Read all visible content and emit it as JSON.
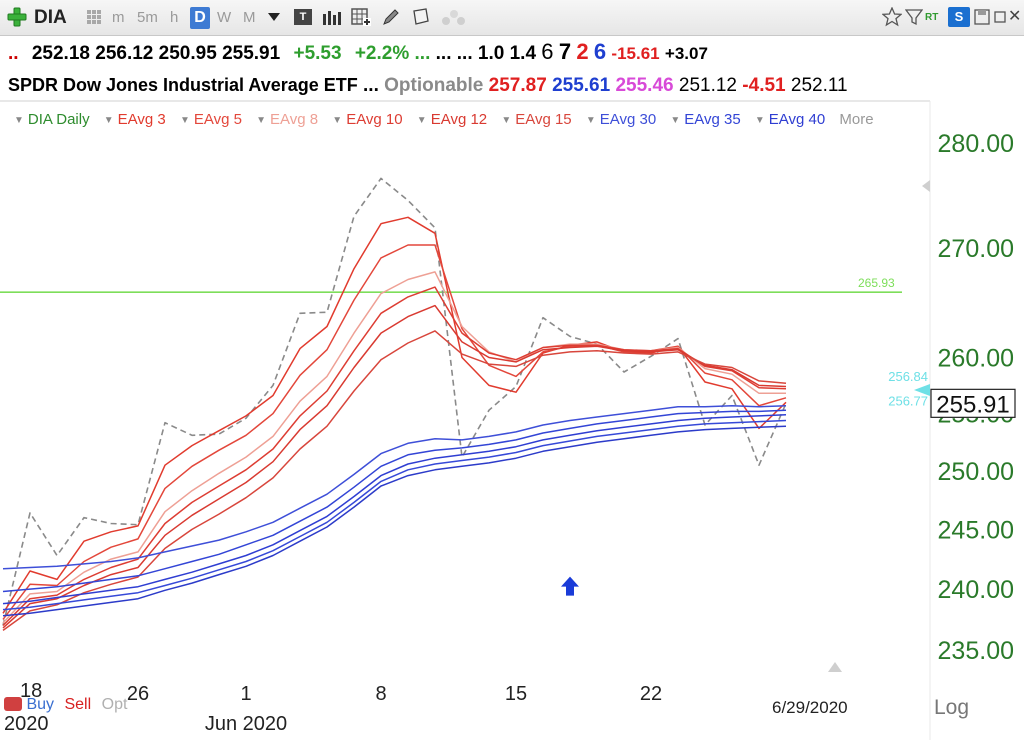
{
  "toolbar": {
    "symbol": "DIA",
    "timeframes": [
      "m",
      "5m",
      "h",
      "D",
      "W",
      "M"
    ],
    "active_timeframe": "D",
    "chart_type_badge": "T",
    "rt_badge": "RT",
    "s_badge": "S"
  },
  "quote_line1": {
    "lead": "..",
    "open": "252.18",
    "high": "256.12",
    "low": "250.95",
    "last": "255.91",
    "change": "+5.53",
    "change_pct": "+2.2%",
    "dots_green": "...",
    "dots1": "...",
    "dots2": "...",
    "v1": "1.0",
    "v2": "1.4",
    "c6": "6",
    "c7": "7",
    "c2": "2",
    "c6b": "6",
    "v3": "-15.61",
    "v4": "+3.07"
  },
  "quote_line2": {
    "name": "SPDR Dow Jones Industrial Average ETF",
    "dots": "...",
    "optionable": "Optionable",
    "p1": "257.87",
    "p2": "255.61",
    "p3": "255.46",
    "p4": "251.12",
    "p5": "-4.51",
    "p6": "252.11"
  },
  "legend": {
    "items": [
      "DIA Daily",
      "EAvg 3",
      "EAvg 5",
      "EAvg 8",
      "EAvg 10",
      "EAvg 12",
      "EAvg 15",
      "EAvg 30",
      "EAvg 35",
      "EAvg 40"
    ],
    "more": "More"
  },
  "bottom": {
    "buy": "Buy",
    "sell": "Sell",
    "opt": "Opt",
    "log": "Log",
    "date": "6/29/2020",
    "year": "2020",
    "partial_day": "18"
  },
  "colors": {
    "price": "#8a8a8a",
    "short_emas": [
      "#e13b2e",
      "#e3473b",
      "#eea095",
      "#dd3d33",
      "#d93a31",
      "#d8463c"
    ],
    "long_emas": [
      "#3e4fd8",
      "#3345d6",
      "#2f3ed2",
      "#3649d8",
      "#2c3bc9",
      "#4153dc"
    ],
    "hline": "#7dde5a",
    "axis": "#2a7a2a",
    "cyan": "#6fe0e6"
  },
  "chart_data": {
    "type": "line",
    "title": "",
    "ylabel": "",
    "xlabel": "",
    "log_scale": true,
    "ylim": [
      233.5,
      282
    ],
    "yticks": [
      235,
      240,
      245,
      250,
      255,
      260,
      270,
      280
    ],
    "ytick_labels": [
      "235.00",
      "240.00",
      "245.00",
      "250.00",
      "255.00",
      "260.00",
      "270.00",
      "280.00"
    ],
    "x": [
      "5/18",
      "5/19",
      "5/20",
      "5/21",
      "5/22",
      "5/26",
      "5/27",
      "5/28",
      "5/29",
      "6/1",
      "6/2",
      "6/3",
      "6/4",
      "6/5",
      "6/8",
      "6/9",
      "6/10",
      "6/11",
      "6/12",
      "6/15",
      "6/16",
      "6/17",
      "6/18",
      "6/19",
      "6/22",
      "6/23",
      "6/24",
      "6/25",
      "6/26",
      "6/29"
    ],
    "xtick_labels": [
      {
        "label": "26",
        "index": 5
      },
      {
        "label": "1",
        "index": 9
      },
      {
        "label": "8",
        "index": 14
      },
      {
        "label": "15",
        "index": 19
      },
      {
        "label": "22",
        "index": 24
      }
    ],
    "month_label": {
      "label": "Jun 2020",
      "index": 9
    },
    "series": [
      {
        "name": "DIA Daily",
        "style": "dashed",
        "values": [
          237.0,
          246.4,
          242.8,
          246.0,
          245.5,
          245.4,
          254.2,
          253.1,
          253.2,
          254.6,
          257.5,
          264.0,
          264.1,
          273.0,
          276.6,
          274.5,
          271.9,
          251.2,
          255.3,
          257.4,
          263.6,
          261.9,
          261.2,
          258.7,
          260.1,
          261.7,
          254.0,
          256.6,
          250.5,
          255.9
        ]
      },
      {
        "name": "EAvg 3",
        "values": [
          238.0,
          241.5,
          240.8,
          244.0,
          244.8,
          245.3,
          250.5,
          252.2,
          253.5,
          254.8,
          256.6,
          260.8,
          262.8,
          268.1,
          272.3,
          272.9,
          271.4,
          260.0,
          257.5,
          256.9,
          260.4,
          261.1,
          261.4,
          260.5,
          260.4,
          261.0,
          257.8,
          257.2,
          253.7,
          256.0
        ]
      },
      {
        "name": "EAvg 5",
        "values": [
          237.5,
          240.4,
          240.3,
          242.3,
          243.5,
          244.2,
          248.5,
          250.4,
          251.8,
          253.1,
          255.0,
          258.4,
          260.7,
          265.2,
          269.1,
          270.3,
          270.3,
          262.6,
          259.3,
          258.3,
          260.5,
          261.0,
          261.1,
          260.5,
          260.6,
          261.0,
          258.6,
          258.0,
          255.7,
          256.4
        ]
      },
      {
        "name": "EAvg 8",
        "values": [
          237.2,
          239.6,
          239.8,
          241.4,
          242.5,
          243.1,
          246.5,
          248.3,
          249.8,
          251.2,
          253.0,
          256.1,
          258.3,
          262.2,
          265.8,
          267.1,
          267.8,
          262.8,
          260.5,
          259.6,
          260.9,
          261.2,
          261.2,
          260.7,
          260.6,
          260.9,
          259.0,
          258.5,
          256.8,
          256.8
        ]
      },
      {
        "name": "EAvg 10",
        "values": [
          237.0,
          239.2,
          239.5,
          240.8,
          241.8,
          242.5,
          245.5,
          247.3,
          248.7,
          250.1,
          251.9,
          254.8,
          257.0,
          260.6,
          264.0,
          265.5,
          266.4,
          262.2,
          260.4,
          259.8,
          260.9,
          261.1,
          261.1,
          260.7,
          260.6,
          260.8,
          259.2,
          258.8,
          257.3,
          257.2
        ]
      },
      {
        "name": "EAvg 12",
        "values": [
          236.8,
          238.8,
          239.2,
          240.3,
          241.2,
          241.8,
          244.5,
          246.2,
          247.6,
          249.0,
          250.8,
          253.6,
          255.7,
          259.1,
          262.2,
          263.7,
          264.7,
          261.4,
          260.0,
          259.6,
          260.7,
          260.9,
          261.0,
          260.6,
          260.5,
          260.7,
          259.3,
          258.9,
          257.5,
          257.4
        ]
      },
      {
        "name": "EAvg 15",
        "values": [
          236.6,
          238.2,
          238.7,
          239.7,
          240.4,
          241.0,
          243.4,
          245.0,
          246.3,
          247.7,
          249.4,
          251.9,
          253.9,
          257.0,
          259.8,
          261.3,
          262.4,
          260.3,
          259.4,
          259.2,
          260.2,
          260.5,
          260.6,
          260.4,
          260.3,
          260.5,
          259.4,
          259.1,
          257.9,
          257.7
        ]
      },
      {
        "name": "EAvg 30",
        "values": [
          241.7,
          241.8,
          241.9,
          242.1,
          242.3,
          242.6,
          243.1,
          243.6,
          244.1,
          244.8,
          245.6,
          246.8,
          248.0,
          249.7,
          251.5,
          252.4,
          252.8,
          252.7,
          253.0,
          253.4,
          254.0,
          254.4,
          254.7,
          255.0,
          255.3,
          255.6,
          255.6,
          255.7,
          255.6,
          255.7
        ]
      },
      {
        "name": "EAvg 35",
        "values": [
          239.8,
          240.0,
          240.2,
          240.5,
          240.8,
          241.1,
          241.7,
          242.3,
          242.9,
          243.7,
          244.5,
          245.7,
          246.9,
          248.6,
          250.4,
          251.4,
          251.8,
          252.0,
          252.3,
          252.7,
          253.3,
          253.7,
          254.1,
          254.4,
          254.7,
          255.0,
          255.1,
          255.2,
          255.2,
          255.3
        ]
      },
      {
        "name": "EAvg 40",
        "values": [
          238.8,
          239.0,
          239.3,
          239.6,
          239.9,
          240.2,
          240.8,
          241.4,
          242.1,
          242.8,
          243.7,
          244.9,
          246.1,
          247.8,
          249.6,
          250.6,
          251.1,
          251.4,
          251.7,
          252.1,
          252.7,
          253.1,
          253.5,
          253.8,
          254.1,
          254.4,
          254.6,
          254.7,
          254.8,
          254.9
        ]
      },
      {
        "values": [
          238.3,
          238.5,
          238.8,
          239.1,
          239.4,
          239.7,
          240.3,
          240.9,
          241.6,
          242.3,
          243.2,
          244.4,
          245.6,
          247.3,
          249.1,
          250.1,
          250.6,
          250.9,
          251.2,
          251.6,
          252.2,
          252.6,
          253.0,
          253.3,
          253.6,
          253.9,
          254.1,
          254.2,
          254.3,
          254.4
        ]
      },
      {
        "values": [
          237.8,
          238.0,
          238.3,
          238.6,
          238.9,
          239.2,
          239.9,
          240.5,
          241.2,
          241.9,
          242.8,
          244.0,
          245.2,
          246.9,
          248.7,
          249.6,
          250.1,
          250.4,
          250.7,
          251.1,
          251.7,
          252.1,
          252.5,
          252.8,
          253.1,
          253.4,
          253.6,
          253.7,
          253.8,
          253.9
        ]
      }
    ],
    "hline": {
      "value": 265.93,
      "label": "265.93"
    },
    "annotations": [
      {
        "label": "256.84",
        "value": 256.84
      },
      {
        "label": "256.77",
        "value": 256.77
      }
    ],
    "last_price": {
      "label": "255.91",
      "value": 255.91
    },
    "marker": {
      "type": "up-arrow",
      "index": 21,
      "value": 240.2
    },
    "grid": false,
    "legend_position": "top-left"
  }
}
